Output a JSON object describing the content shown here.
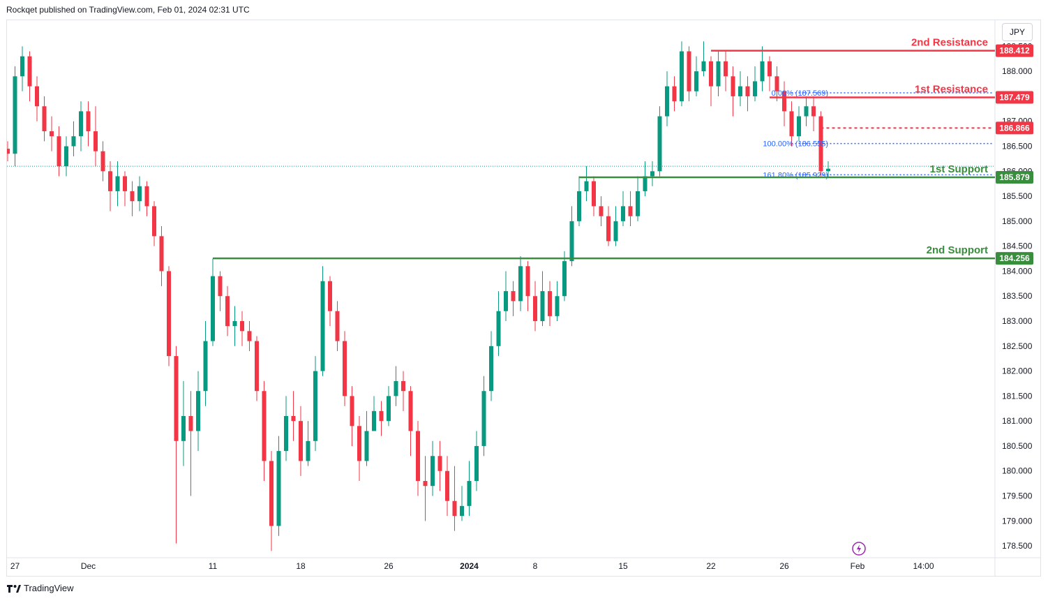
{
  "header": {
    "published": "Rockqet published on TradingView.com, Feb 01, 2024 02:31 UTC"
  },
  "currency": "JPY",
  "footer": {
    "brand": "TradingView"
  },
  "colors": {
    "up": "#089981",
    "down": "#f23645",
    "resistance": "#f23645",
    "support": "#388e3c",
    "fib": "#2962ff"
  },
  "chart_data": {
    "type": "candlestick",
    "title": "",
    "ylim": [
      178.25,
      189.05
    ],
    "xticks": [
      {
        "label": "27",
        "i": 1
      },
      {
        "label": "Dec",
        "i": 11
      },
      {
        "label": "11",
        "i": 28
      },
      {
        "label": "18",
        "i": 40
      },
      {
        "label": "26",
        "i": 52
      },
      {
        "label": "2024",
        "i": 63
      },
      {
        "label": "8",
        "i": 72
      },
      {
        "label": "15",
        "i": 84
      },
      {
        "label": "22",
        "i": 96
      },
      {
        "label": "26",
        "i": 106
      },
      {
        "label": "Feb",
        "i": 116
      },
      {
        "label": "14:00",
        "i": 125
      }
    ],
    "yticks": [
      178.5,
      179.0,
      179.5,
      180.0,
      180.5,
      181.0,
      181.5,
      182.0,
      182.5,
      183.0,
      183.5,
      184.0,
      184.5,
      185.0,
      185.5,
      186.0,
      186.5,
      187.0,
      187.5,
      188.0,
      188.5
    ],
    "levels": [
      {
        "name": "2nd Resistance",
        "value": 188.412,
        "label": "188.412",
        "kind": "resistance",
        "start_i": 96
      },
      {
        "name": "1st Resistance",
        "value": 187.479,
        "label": "187.479",
        "kind": "resistance",
        "start_i": 104
      },
      {
        "name": "1st Support",
        "value": 185.879,
        "label": "185.879",
        "kind": "support",
        "start_i": 78
      },
      {
        "name": "2nd Support",
        "value": 184.256,
        "label": "184.256",
        "kind": "support",
        "start_i": 28
      }
    ],
    "pivot": {
      "value": 186.866,
      "label": "186.866"
    },
    "fib": [
      {
        "text": "0.00% (187.569)",
        "value": 187.569
      },
      {
        "text": "100.00% (186.555)",
        "value": 186.555
      },
      {
        "text": "161.80% (185.929)",
        "value": 185.929
      }
    ],
    "last_price": 186.1,
    "candles": [
      [
        186.45,
        186.35,
        186.6,
        186.2
      ],
      [
        186.35,
        187.9,
        188.1,
        186.1
      ],
      [
        187.9,
        188.3,
        188.5,
        187.6
      ],
      [
        188.3,
        187.7,
        188.4,
        187.4
      ],
      [
        187.7,
        187.3,
        187.9,
        187.0
      ],
      [
        187.3,
        186.8,
        187.5,
        186.6
      ],
      [
        186.8,
        186.7,
        187.1,
        186.4
      ],
      [
        186.7,
        186.1,
        186.9,
        185.9
      ],
      [
        186.1,
        186.5,
        186.7,
        185.9
      ],
      [
        186.5,
        186.7,
        187.0,
        186.3
      ],
      [
        186.7,
        187.2,
        187.4,
        186.4
      ],
      [
        187.2,
        186.8,
        187.4,
        186.5
      ],
      [
        186.8,
        186.4,
        187.3,
        186.1
      ],
      [
        186.4,
        186.0,
        186.6,
        185.8
      ],
      [
        186.0,
        185.6,
        186.2,
        185.2
      ],
      [
        185.6,
        185.9,
        186.2,
        185.3
      ],
      [
        185.9,
        185.6,
        186.0,
        185.3
      ],
      [
        185.6,
        185.4,
        185.8,
        185.1
      ],
      [
        185.4,
        185.7,
        185.9,
        185.2
      ],
      [
        185.7,
        185.3,
        185.8,
        185.1
      ],
      [
        185.3,
        184.7,
        185.4,
        184.5
      ],
      [
        184.7,
        184.0,
        184.9,
        183.7
      ],
      [
        184.0,
        182.3,
        184.1,
        182.1
      ],
      [
        182.3,
        180.6,
        182.5,
        178.55
      ],
      [
        180.6,
        181.1,
        181.8,
        180.1
      ],
      [
        181.1,
        180.8,
        181.6,
        179.5
      ],
      [
        180.8,
        181.6,
        182.0,
        180.4
      ],
      [
        181.6,
        182.6,
        183.0,
        181.3
      ],
      [
        182.6,
        183.9,
        184.25,
        182.5
      ],
      [
        183.9,
        183.5,
        184.0,
        183.2
      ],
      [
        183.5,
        182.9,
        183.7,
        182.7
      ],
      [
        182.9,
        183.0,
        183.3,
        182.5
      ],
      [
        183.0,
        182.8,
        183.2,
        182.5
      ],
      [
        182.8,
        182.6,
        183.0,
        182.4
      ],
      [
        182.6,
        181.6,
        182.7,
        181.4
      ],
      [
        181.6,
        180.2,
        181.8,
        179.8
      ],
      [
        180.2,
        178.9,
        180.4,
        178.4
      ],
      [
        178.9,
        180.4,
        180.7,
        178.7
      ],
      [
        180.4,
        181.1,
        181.5,
        180.2
      ],
      [
        181.1,
        181.0,
        181.6,
        180.6
      ],
      [
        181.0,
        180.2,
        181.3,
        179.9
      ],
      [
        180.2,
        180.6,
        181.0,
        180.1
      ],
      [
        180.6,
        182.0,
        182.3,
        180.4
      ],
      [
        182.0,
        183.8,
        184.1,
        181.9
      ],
      [
        183.8,
        183.2,
        183.9,
        182.9
      ],
      [
        183.2,
        182.6,
        183.4,
        182.4
      ],
      [
        182.6,
        181.5,
        182.8,
        181.3
      ],
      [
        181.5,
        180.9,
        181.7,
        180.5
      ],
      [
        180.9,
        180.2,
        181.1,
        179.8
      ],
      [
        180.2,
        180.8,
        181.2,
        180.1
      ],
      [
        180.8,
        181.2,
        181.5,
        180.8
      ],
      [
        181.2,
        181.0,
        181.4,
        180.7
      ],
      [
        181.0,
        181.5,
        181.7,
        180.9
      ],
      [
        181.5,
        181.8,
        182.1,
        181.3
      ],
      [
        181.8,
        181.6,
        182.0,
        181.2
      ],
      [
        181.6,
        180.8,
        181.7,
        180.3
      ],
      [
        180.8,
        179.8,
        181.0,
        179.5
      ],
      [
        179.8,
        179.7,
        180.3,
        179.0
      ],
      [
        179.7,
        180.3,
        180.6,
        179.5
      ],
      [
        180.3,
        180.0,
        180.6,
        179.6
      ],
      [
        180.0,
        179.4,
        180.3,
        179.1
      ],
      [
        179.4,
        179.1,
        180.1,
        178.8
      ],
      [
        179.1,
        179.3,
        179.7,
        179.0
      ],
      [
        179.3,
        179.8,
        180.2,
        179.1
      ],
      [
        179.8,
        180.5,
        180.8,
        179.6
      ],
      [
        180.5,
        181.6,
        181.9,
        180.3
      ],
      [
        181.6,
        182.5,
        182.8,
        181.4
      ],
      [
        182.5,
        183.2,
        183.6,
        182.3
      ],
      [
        183.2,
        183.6,
        184.0,
        183.0
      ],
      [
        183.6,
        183.4,
        183.8,
        183.1
      ],
      [
        183.4,
        184.1,
        184.3,
        183.2
      ],
      [
        184.1,
        183.5,
        184.2,
        183.2
      ],
      [
        183.5,
        183.0,
        183.8,
        182.8
      ],
      [
        183.0,
        183.6,
        184.0,
        182.9
      ],
      [
        183.6,
        183.1,
        183.8,
        182.9
      ],
      [
        183.1,
        183.5,
        183.8,
        183.0
      ],
      [
        183.5,
        184.2,
        184.4,
        183.4
      ],
      [
        184.2,
        185.0,
        185.3,
        184.1
      ],
      [
        185.0,
        185.6,
        185.9,
        184.9
      ],
      [
        185.6,
        185.8,
        186.1,
        185.4
      ],
      [
        185.8,
        185.3,
        185.9,
        185.1
      ],
      [
        185.3,
        185.1,
        185.5,
        184.9
      ],
      [
        185.1,
        184.6,
        185.3,
        184.5
      ],
      [
        184.6,
        185.0,
        185.3,
        184.5
      ],
      [
        185.0,
        185.3,
        185.6,
        184.9
      ],
      [
        185.3,
        185.1,
        185.6,
        184.9
      ],
      [
        185.1,
        185.6,
        185.9,
        185.0
      ],
      [
        185.6,
        185.9,
        186.2,
        185.5
      ],
      [
        185.9,
        186.0,
        186.2,
        185.7
      ],
      [
        186.0,
        187.1,
        187.3,
        185.9
      ],
      [
        187.1,
        187.7,
        188.0,
        186.9
      ],
      [
        187.7,
        187.4,
        187.9,
        187.2
      ],
      [
        187.4,
        188.4,
        188.6,
        187.3
      ],
      [
        188.4,
        187.6,
        188.5,
        187.4
      ],
      [
        187.6,
        188.0,
        188.3,
        187.5
      ],
      [
        188.0,
        188.2,
        188.6,
        187.9
      ],
      [
        188.2,
        187.7,
        188.3,
        187.3
      ],
      [
        187.7,
        188.2,
        188.4,
        187.5
      ],
      [
        188.2,
        187.9,
        188.4,
        187.6
      ],
      [
        187.9,
        187.5,
        188.1,
        187.1
      ],
      [
        187.5,
        187.7,
        188.0,
        187.3
      ],
      [
        187.7,
        187.5,
        187.9,
        187.2
      ],
      [
        187.5,
        187.8,
        188.1,
        187.4
      ],
      [
        187.8,
        188.2,
        188.5,
        187.6
      ],
      [
        188.2,
        187.9,
        188.3,
        187.6
      ],
      [
        187.9,
        187.6,
        188.1,
        187.4
      ],
      [
        187.6,
        187.2,
        187.8,
        186.9
      ],
      [
        187.2,
        186.7,
        187.4,
        186.5
      ],
      [
        186.7,
        187.1,
        187.3,
        186.6
      ],
      [
        187.1,
        187.3,
        187.5,
        186.9
      ],
      [
        187.3,
        187.1,
        187.5,
        186.8
      ],
      [
        187.1,
        186.0,
        187.2,
        185.9
      ],
      [
        186.0,
        186.05,
        186.2,
        185.88
      ]
    ]
  }
}
